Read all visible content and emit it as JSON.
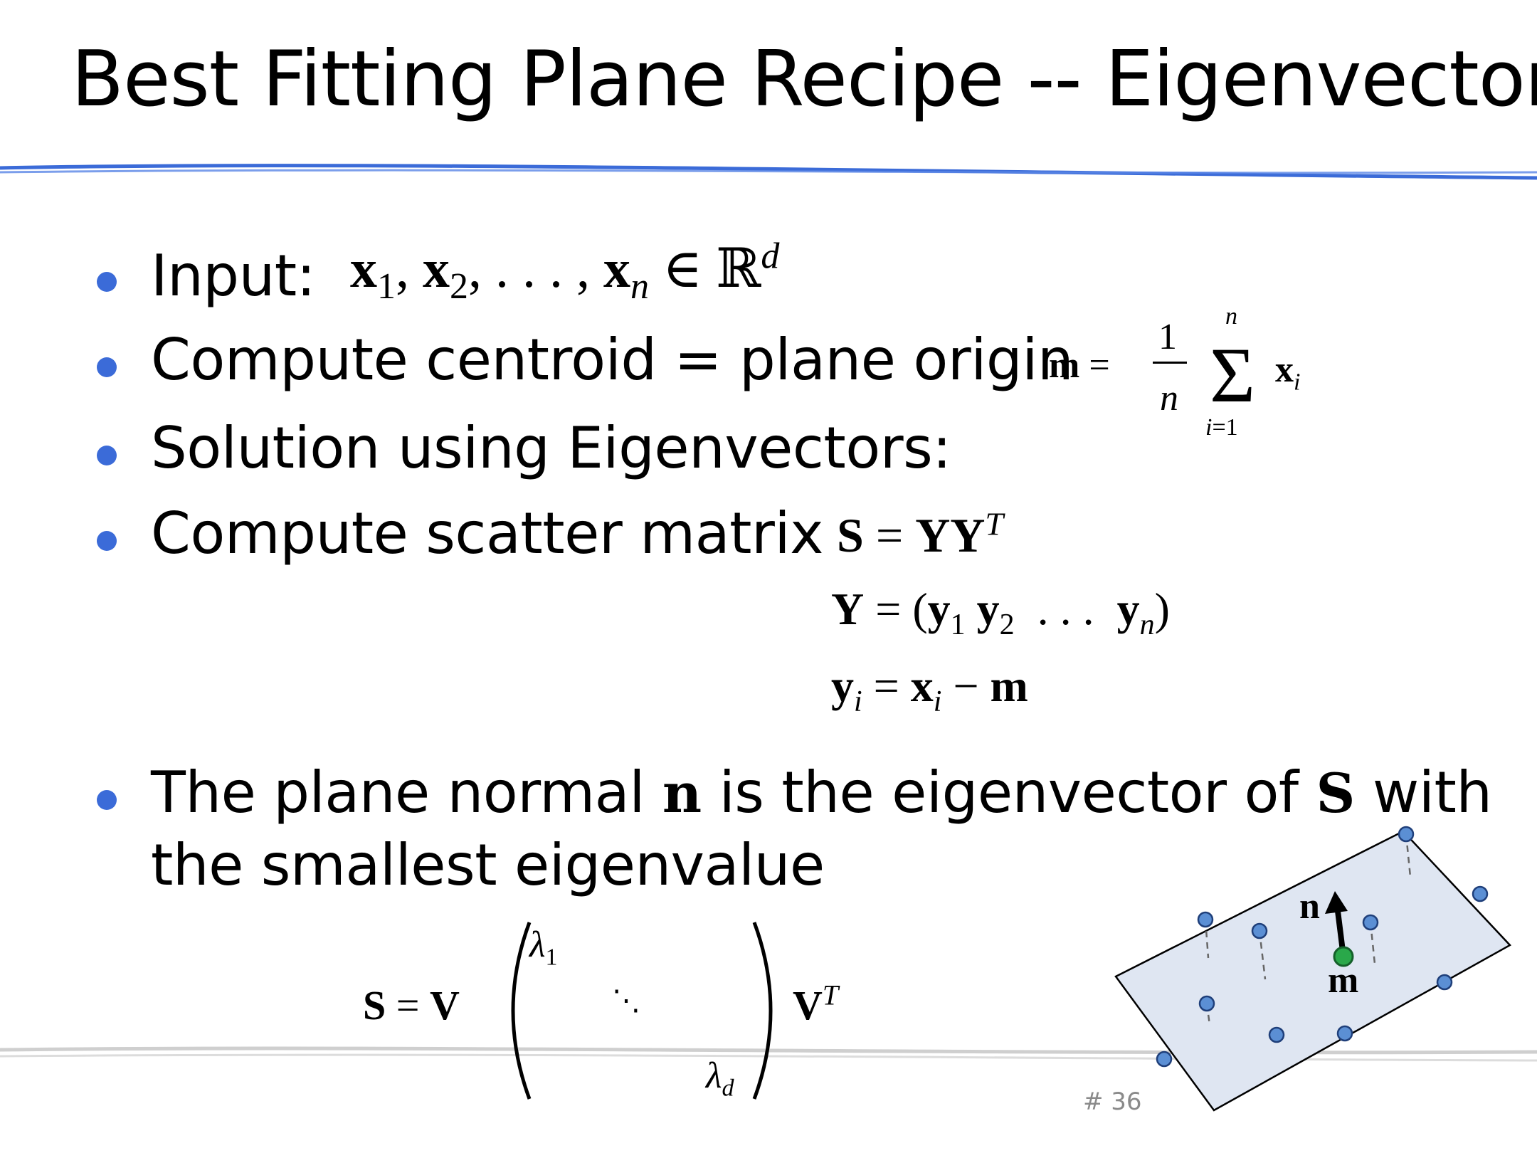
{
  "slide": {
    "title": "Best Fitting Plane Recipe -- Eigenvectors",
    "page_number": "# 36"
  },
  "bullets": {
    "input_label": "Input:",
    "centroid_label": "Compute centroid = plane origin",
    "solution_label": "Solution using Eigenvectors:",
    "scatter_label": "Compute scatter matrix",
    "normal_part1": "The plane normal",
    "normal_var": "n",
    "normal_part2": "is the eigenvector of",
    "normal_var2": "S",
    "normal_part3": "with",
    "normal_line2": "the smallest eigenvalue"
  },
  "equations": {
    "input_set": "x₁, x₂, . . . , xₙ ∈ ℝᵈ",
    "centroid": "m = (1/n) Σᵢ₌₁ⁿ xᵢ",
    "scatter": "S = YYᵀ",
    "y_matrix": "Y = (y₁ y₂ … yₙ)",
    "y_def": "yᵢ = xᵢ − m",
    "decomposition": "S = V diag(λ₁ … λ_d) Vᵀ"
  },
  "diagram": {
    "normal_label": "n",
    "centroid_label": "m",
    "colors": {
      "plane_fill": "#dfe6f2",
      "point_fill": "#5b8fd4",
      "centroid_fill": "#2aa84a",
      "rule_blue": "#3b6bd8"
    }
  }
}
